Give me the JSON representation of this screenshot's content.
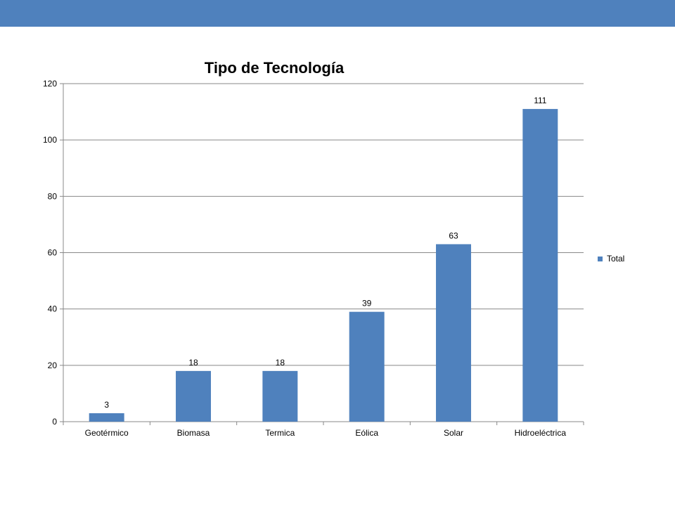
{
  "colors": {
    "top_bar": "#4F81BD",
    "bar": "#4F81BD",
    "grid": "#888888",
    "axis": "#888888"
  },
  "chart_data": {
    "type": "bar",
    "title": "Tipo de Tecnología",
    "xlabel": "",
    "ylabel": "",
    "categories": [
      "Geotérmico",
      "Biomasa",
      "Termica",
      "Eólica",
      "Solar",
      "Hidroeléctrica"
    ],
    "series": [
      {
        "name": "Total",
        "values": [
          3,
          18,
          18,
          39,
          63,
          111
        ]
      }
    ],
    "data_labels": [
      "3",
      "18",
      "18",
      "39",
      "63",
      "111"
    ],
    "ylim": [
      0,
      120
    ],
    "yticks": [
      0,
      20,
      40,
      60,
      80,
      100,
      120
    ],
    "grid": true,
    "legend": "right"
  }
}
